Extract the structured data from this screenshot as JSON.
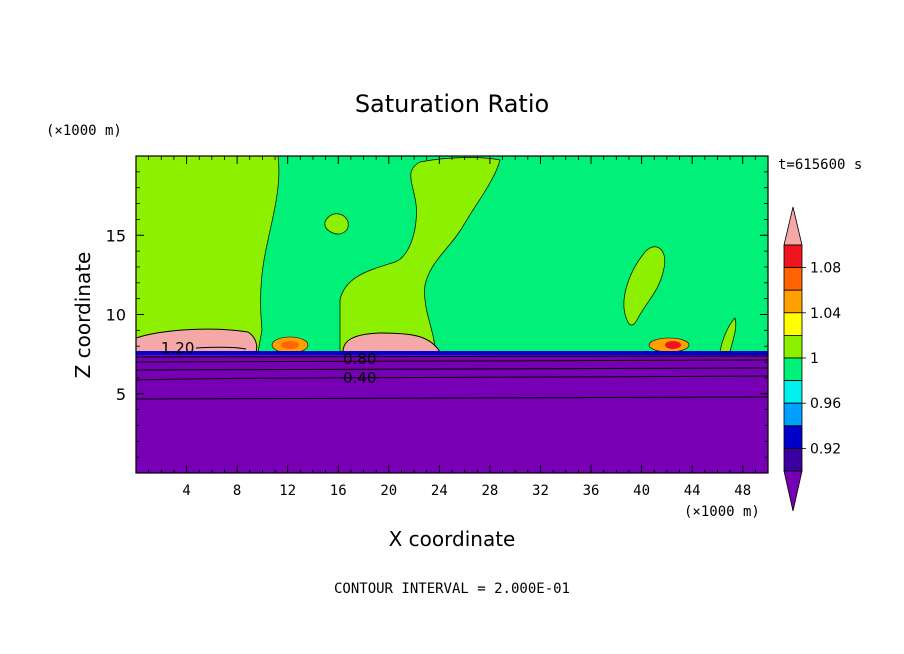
{
  "chart_data": {
    "type": "heatmap",
    "title": "Saturation Ratio",
    "xlabel": "X coordinate",
    "ylabel": "Z coordinate",
    "x_unit": "(×1000 m)",
    "y_unit": "(×1000 m)",
    "time_label": "t=615600 s",
    "footer": "CONTOUR INTERVAL = 2.000E-01",
    "xlim": [
      0,
      50
    ],
    "ylim": [
      0,
      20
    ],
    "x_ticks": [
      4,
      8,
      12,
      16,
      20,
      24,
      28,
      32,
      36,
      40,
      44,
      48
    ],
    "y_ticks": [
      5,
      10,
      15
    ],
    "x_tick_labels": [
      "4",
      "8",
      "12",
      "16",
      "20",
      "24",
      "28",
      "32",
      "36",
      "40",
      "44",
      "48"
    ],
    "y_tick_labels": [
      "5",
      "10",
      "15"
    ],
    "colorbar": {
      "labels": [
        "1.08",
        "1.04",
        "1",
        "0.96",
        "0.92"
      ],
      "label_values": [
        1.08,
        1.04,
        1.0,
        0.96,
        0.92
      ],
      "bins": [
        {
          "min": 1.1,
          "max": null,
          "color": "#f4a8a8"
        },
        {
          "min": 1.08,
          "max": 1.1,
          "color": "#f0141e"
        },
        {
          "min": 1.06,
          "max": 1.08,
          "color": "#ff6400"
        },
        {
          "min": 1.04,
          "max": 1.06,
          "color": "#ffa000"
        },
        {
          "min": 1.02,
          "max": 1.04,
          "color": "#ffff00"
        },
        {
          "min": 1.0,
          "max": 1.02,
          "color": "#8cf000"
        },
        {
          "min": 0.98,
          "max": 1.0,
          "color": "#00f078"
        },
        {
          "min": 0.96,
          "max": 0.98,
          "color": "#00f0f0"
        },
        {
          "min": 0.94,
          "max": 0.96,
          "color": "#00a0ff"
        },
        {
          "min": 0.92,
          "max": 0.94,
          "color": "#0000c8"
        },
        {
          "min": 0.9,
          "max": 0.92,
          "color": "#3c00a0"
        },
        {
          "min": null,
          "max": 0.9,
          "color": "#7800b4"
        }
      ]
    },
    "contour_labels": [
      {
        "text": "1.20",
        "x": 3.3,
        "y": 7.9
      },
      {
        "text": "0.80",
        "x": 17.7,
        "y": 7.2
      },
      {
        "text": "0.40",
        "x": 17.7,
        "y": 6.0
      }
    ],
    "regions": [
      {
        "value": "<0.90",
        "color": "#7800b4",
        "description": "lower layer, z < ~7 km, full width"
      },
      {
        "value": "0.98-1.00",
        "color": "#00f078",
        "description": "upper background above ~7.5 km"
      },
      {
        "value": "1.00-1.02",
        "color": "#8cf000",
        "description": "supersaturated plumes at x≈0-11, 16-28, 39-42, 45-46"
      },
      {
        "value": ">1.10",
        "color": "#f4a8a8",
        "description": "cloud layers near z≈8 km at x≈0-10 and x≈16-24"
      }
    ]
  }
}
